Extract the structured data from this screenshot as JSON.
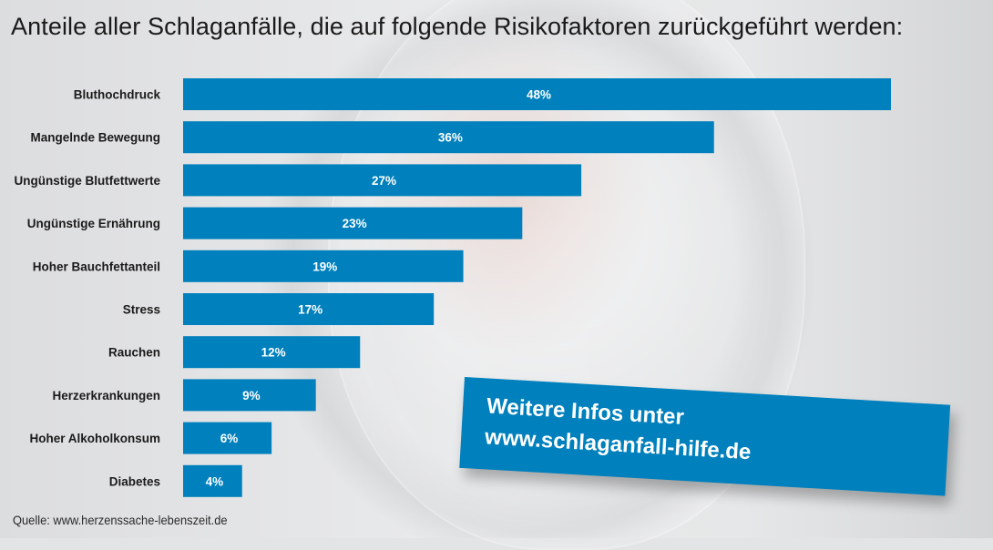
{
  "title": "Anteile aller Schlaganfälle, die auf folgende Risikofaktoren zurückgeführt werden:",
  "source": "Quelle: www.herzenssache-lebenszeit.de",
  "infobox": {
    "line1": "Weitere Infos unter",
    "line2": "www.schlaganfall-hilfe.de"
  },
  "colors": {
    "bar": "#0080bc",
    "label_text": "#1a1a1a",
    "value_text": "#ffffff"
  },
  "chart_data": {
    "type": "bar",
    "orientation": "horizontal",
    "title": "Anteile aller Schlaganfälle, die auf folgende Risikofaktoren zurückgeführt werden:",
    "xlabel": "",
    "ylabel": "",
    "xlim": [
      0,
      48
    ],
    "grid": false,
    "legend": "none",
    "unit": "%",
    "categories": [
      "Bluthochdruck",
      "Mangelnde Bewegung",
      "Ungünstige Blutfettwerte",
      "Ungünstige Ernährung",
      "Hoher Bauchfettanteil",
      "Stress",
      "Rauchen",
      "Herzerkrankungen",
      "Hoher Alkoholkonsum",
      "Diabetes"
    ],
    "values": [
      48,
      36,
      27,
      23,
      19,
      17,
      12,
      9,
      6,
      4
    ],
    "value_labels": [
      "48%",
      "36%",
      "27%",
      "23%",
      "19%",
      "17%",
      "12%",
      "9%",
      "6%",
      "4%"
    ]
  }
}
